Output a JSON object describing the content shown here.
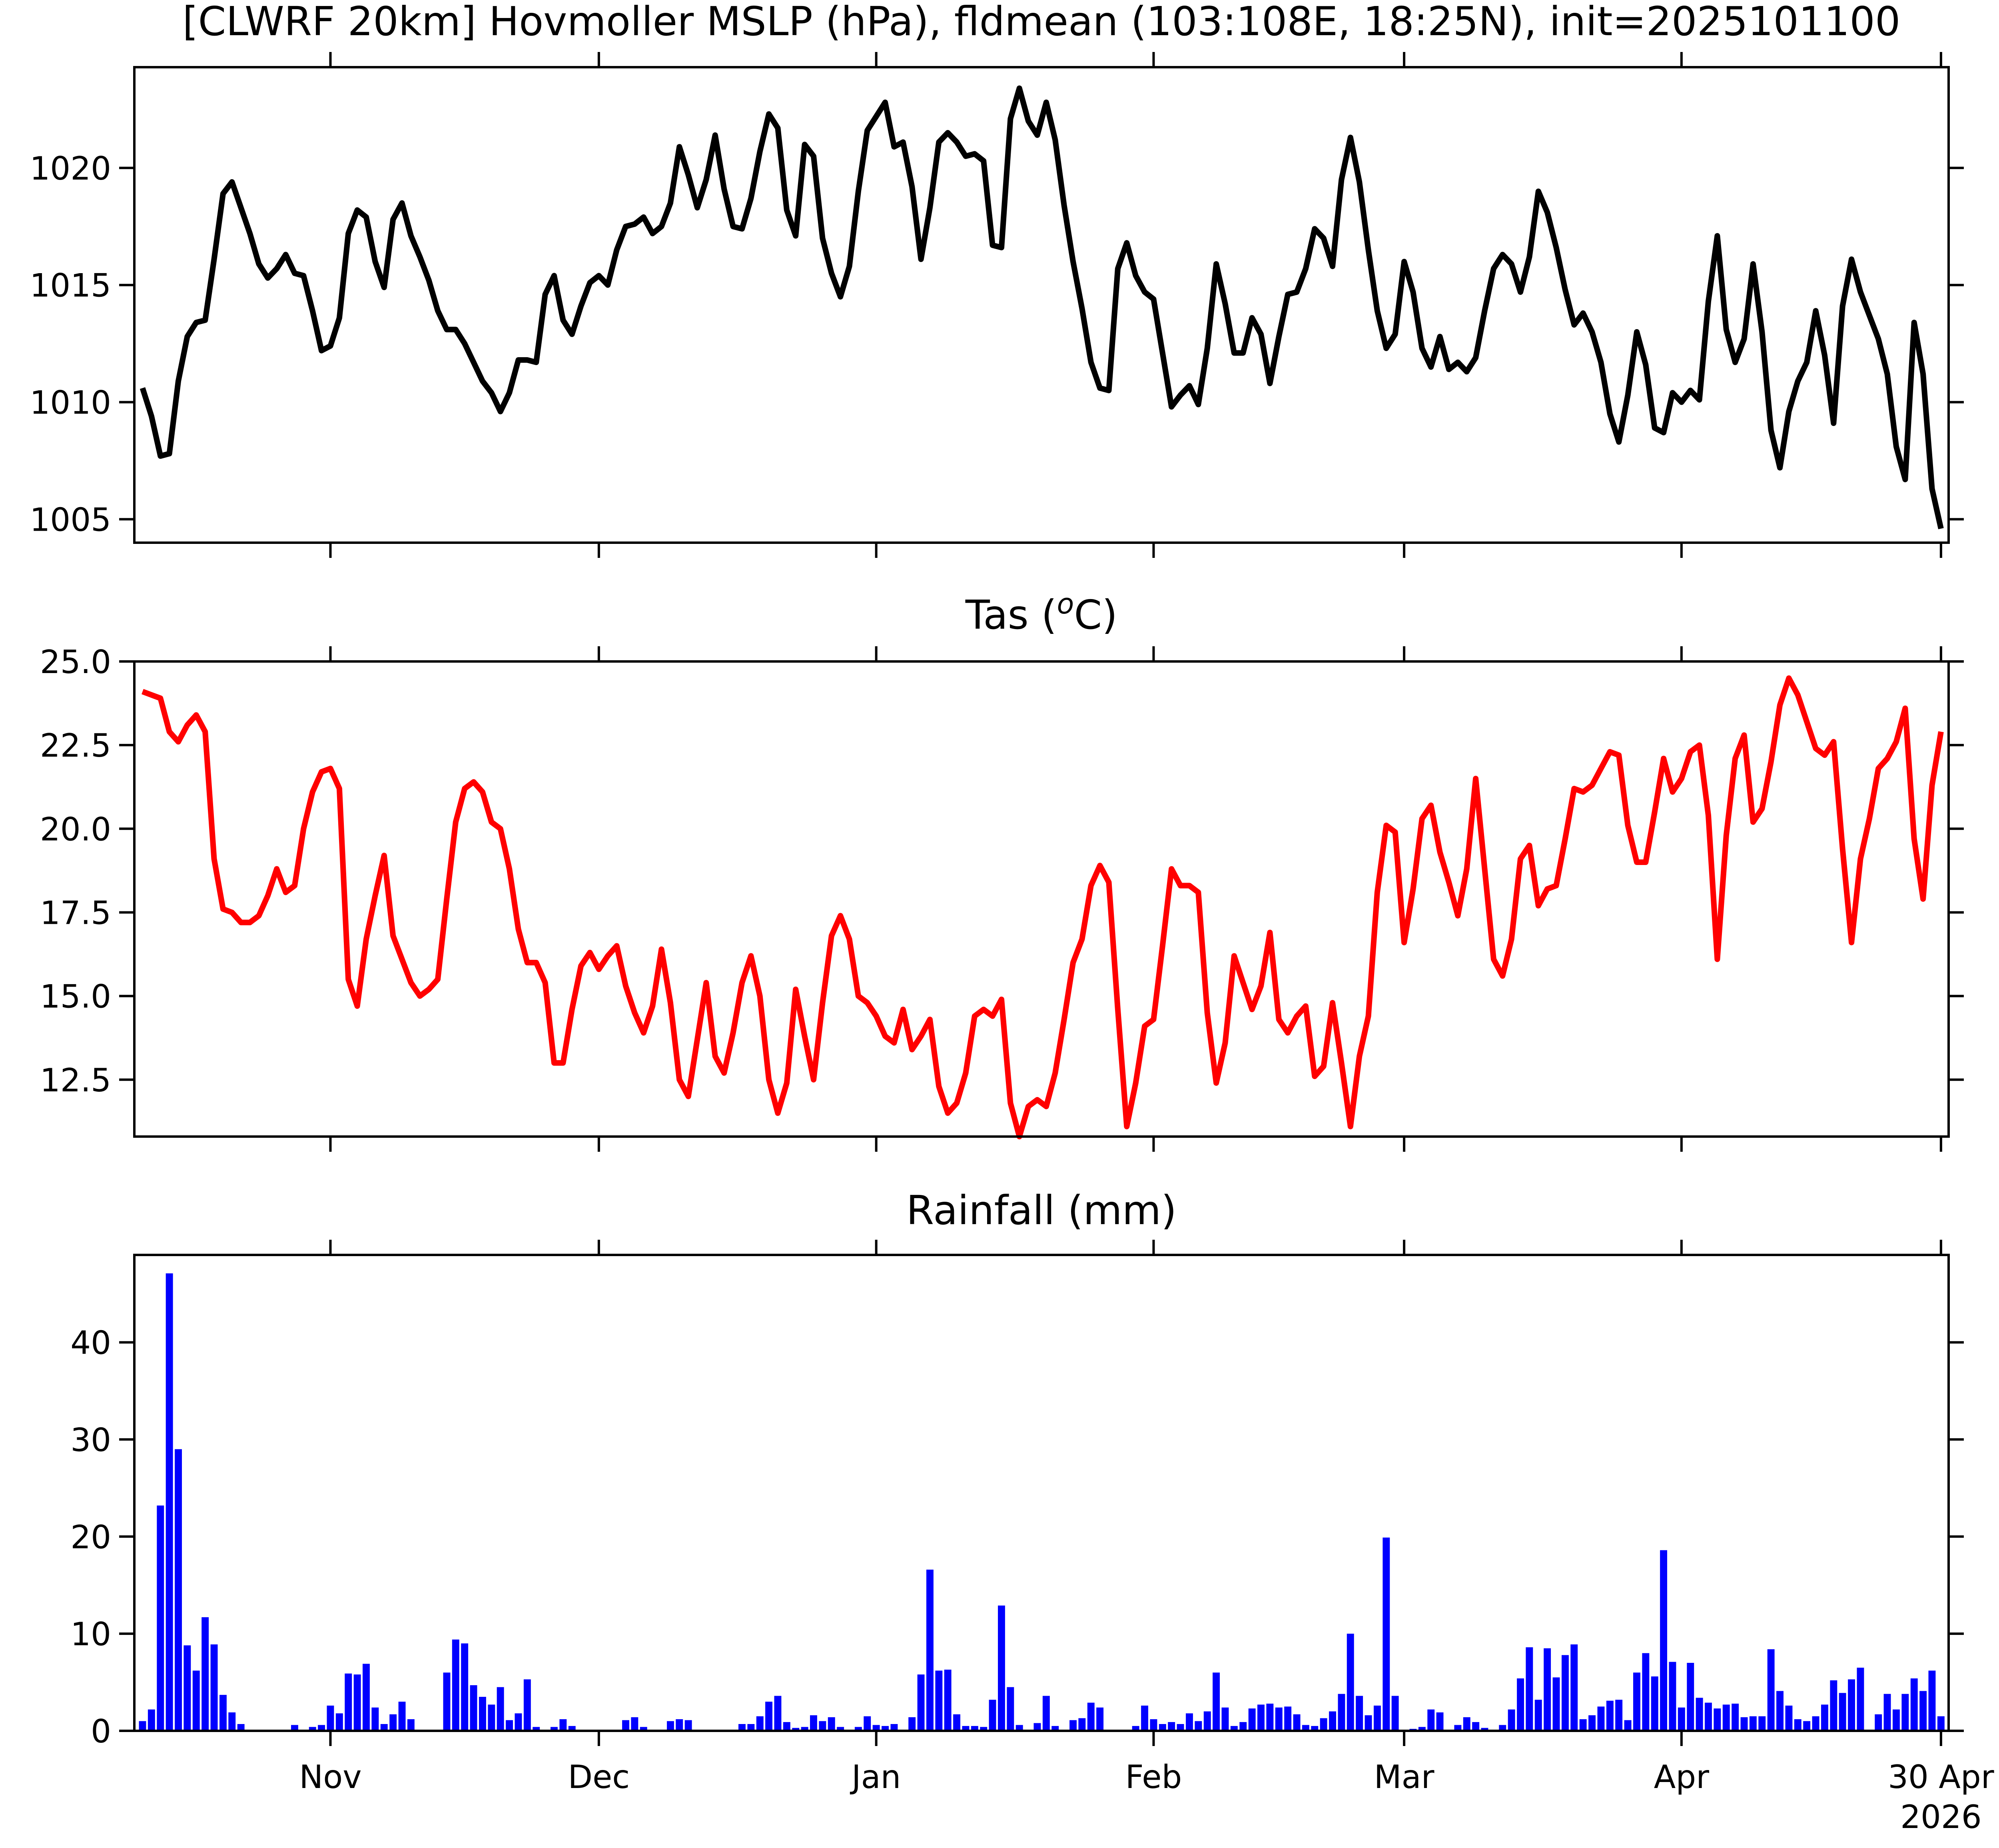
{
  "chart_data": [
    {
      "id": "mslp",
      "type": "line",
      "title": "[CLWRF 20km] Hovmoller MSLP (hPa), fldmean (103:108E, 18:25N), init=2025101100",
      "color": "#000000",
      "ylim": [
        1004,
        1024.3
      ],
      "yticks": [
        1005,
        1010,
        1015,
        1020
      ],
      "ytick_labels": [
        "1005",
        "1010",
        "1015",
        "1020"
      ],
      "show_xtick_labels": false,
      "series": [
        {
          "start_day": 0,
          "values": [
            1010.6,
            1009.4,
            1007.7,
            1007.8,
            1010.9,
            1012.8,
            1013.4,
            1013.5,
            1016.1,
            1018.9,
            1019.4,
            1018.3,
            1017.2,
            1015.9,
            1015.3,
            1015.7,
            1016.3,
            1015.5,
            1015.4,
            1013.9,
            1012.2,
            1012.4,
            1013.6,
            1017.2,
            1018.2,
            1017.9,
            1016.0,
            1014.9,
            1017.8,
            1018.5,
            1017.1,
            1016.2,
            1015.2,
            1013.9,
            1013.1,
            1013.1,
            1012.5,
            1011.7,
            1010.9,
            1010.4,
            1009.6,
            1010.4,
            1011.8,
            1011.8,
            1011.7,
            1014.6,
            1015.4,
            1013.5,
            1012.9,
            1014.1,
            1015.1,
            1015.4,
            1015.0,
            1016.5,
            1017.5,
            1017.6,
            1017.9,
            1017.2,
            1017.5,
            1018.5,
            1020.9,
            1019.7,
            1018.3,
            1019.5,
            1021.4,
            1019.1,
            1017.5,
            1017.4,
            1018.7,
            1020.7,
            1022.3,
            1021.7,
            1018.2,
            1017.1,
            1021.0,
            1020.5,
            1017.0,
            1015.5,
            1014.5,
            1015.8,
            1019.0,
            1021.6,
            1022.2,
            1022.8,
            1020.9,
            1021.1,
            1019.2,
            1016.1,
            1018.3,
            1021.1,
            1021.5,
            1021.1,
            1020.5,
            1020.6,
            1020.3,
            1016.7,
            1016.6,
            1022.1,
            1023.4,
            1022.0,
            1021.4,
            1022.8,
            1021.2,
            1018.4,
            1016.0,
            1014.0,
            1011.7,
            1010.6,
            1010.5,
            1015.7,
            1016.8,
            1015.4,
            1014.7,
            1014.4,
            1012.1,
            1009.8,
            1010.3,
            1010.7,
            1009.9,
            1012.3,
            1015.9,
            1014.2,
            1012.1,
            1012.1,
            1013.6,
            1012.9,
            1010.8,
            1012.8,
            1014.6,
            1014.7,
            1015.7,
            1017.4,
            1017.0,
            1015.8,
            1019.5,
            1021.3,
            1019.4,
            1016.5,
            1013.9,
            1012.3,
            1012.9,
            1016.0,
            1014.7,
            1012.3,
            1011.5,
            1012.8,
            1011.4,
            1011.7,
            1011.3,
            1011.9,
            1013.9,
            1015.7,
            1016.3,
            1015.9,
            1014.7,
            1016.2,
            1019.0,
            1018.1,
            1016.6,
            1014.8,
            1013.3,
            1013.8,
            1013.0,
            1011.7,
            1009.5,
            1008.3,
            1010.3,
            1013.0,
            1011.6,
            1008.9,
            1008.7,
            1010.4,
            1010.0,
            1010.5,
            1010.1,
            1014.3,
            1017.1,
            1013.1,
            1011.7,
            1012.7,
            1015.9,
            1013.0,
            1008.8,
            1007.2,
            1009.6,
            1010.9,
            1011.7,
            1013.9,
            1012.0,
            1009.1,
            1014.1,
            1016.1,
            1014.7,
            1013.7,
            1012.7,
            1011.2,
            1008.1,
            1006.7,
            1013.4,
            1011.2,
            1006.3,
            1004.6
          ]
        }
      ]
    },
    {
      "id": "tas",
      "type": "line",
      "title": "Tas (ᵒC)",
      "title_text": "Tas (",
      "title_sup": "o",
      "title_unit": "C)",
      "color": "#ff0000",
      "ylim": [
        10.8,
        25.0
      ],
      "yticks": [
        12.5,
        15.0,
        17.5,
        20.0,
        22.5,
        25.0
      ],
      "ytick_labels": [
        "12.5",
        "15.0",
        "17.5",
        "20.0",
        "22.5",
        "25.0"
      ],
      "show_xtick_labels": false,
      "series": [
        {
          "start_day": 0,
          "values": [
            24.1,
            24.0,
            23.9,
            22.9,
            22.6,
            23.1,
            23.4,
            22.9,
            19.1,
            17.6,
            17.5,
            17.2,
            17.2,
            17.4,
            18.0,
            18.8,
            18.1,
            18.3,
            20.0,
            21.1,
            21.7,
            21.8,
            21.2,
            15.5,
            14.7,
            16.7,
            18.0,
            19.2,
            16.8,
            16.1,
            15.4,
            15.0,
            15.2,
            15.5,
            17.9,
            20.2,
            21.2,
            21.4,
            21.1,
            20.2,
            20.0,
            18.8,
            17.0,
            16.0,
            16.0,
            15.4,
            13.0,
            13.0,
            14.6,
            15.9,
            16.3,
            15.8,
            16.2,
            16.5,
            15.3,
            14.5,
            13.9,
            14.7,
            16.4,
            14.8,
            12.5,
            12.0,
            13.7,
            15.4,
            13.2,
            12.7,
            13.9,
            15.4,
            16.2,
            15.0,
            12.5,
            11.5,
            12.4,
            15.2,
            13.8,
            12.5,
            14.8,
            16.8,
            17.4,
            16.7,
            15.0,
            14.8,
            14.4,
            13.8,
            13.6,
            14.6,
            13.4,
            13.8,
            14.3,
            12.3,
            11.5,
            11.8,
            12.7,
            14.4,
            14.6,
            14.4,
            14.9,
            11.8,
            10.8,
            11.7,
            11.9,
            11.7,
            12.7,
            14.3,
            16.0,
            16.7,
            18.3,
            18.9,
            18.4,
            14.6,
            11.1,
            12.4,
            14.1,
            14.3,
            16.5,
            18.8,
            18.3,
            18.3,
            18.1,
            14.5,
            12.4,
            13.6,
            16.2,
            15.4,
            14.6,
            15.3,
            16.9,
            14.3,
            13.9,
            14.4,
            14.7,
            12.6,
            12.9,
            14.8,
            13.0,
            11.1,
            13.2,
            14.4,
            18.1,
            20.1,
            19.9,
            16.6,
            18.2,
            20.3,
            20.7,
            19.3,
            18.4,
            17.4,
            18.8,
            21.5,
            18.8,
            16.1,
            15.6,
            16.7,
            19.1,
            19.5,
            17.7,
            18.2,
            18.3,
            19.7,
            21.2,
            21.1,
            21.3,
            21.8,
            22.3,
            22.2,
            20.1,
            19.0,
            19.0,
            20.5,
            22.1,
            21.1,
            21.5,
            22.3,
            22.5,
            20.4,
            16.1,
            19.8,
            22.1,
            22.8,
            20.2,
            20.6,
            22.0,
            23.7,
            24.5,
            24.0,
            23.2,
            22.4,
            22.2,
            22.6,
            19.4,
            16.6,
            19.1,
            20.3,
            21.8,
            22.1,
            22.6,
            23.6,
            19.7,
            17.9,
            21.3,
            22.9
          ]
        }
      ]
    },
    {
      "id": "rain",
      "type": "bar",
      "title": "Rainfall (mm)",
      "color": "#0000ff",
      "ylim": [
        0,
        49
      ],
      "yticks": [
        0,
        10,
        20,
        30,
        40
      ],
      "ytick_labels": [
        "0",
        "10",
        "20",
        "30",
        "40"
      ],
      "show_xtick_labels": true,
      "series": [
        {
          "start_day": 0,
          "values": [
            1.0,
            2.2,
            23.2,
            47.1,
            29.0,
            8.8,
            6.2,
            11.7,
            8.9,
            3.7,
            1.9,
            0.7,
            0,
            0,
            0,
            0,
            0,
            0.6,
            0,
            0.4,
            0.6,
            2.6,
            1.8,
            5.9,
            5.8,
            6.9,
            2.4,
            0.7,
            1.7,
            3.0,
            1.2,
            0,
            0,
            0,
            6.0,
            9.4,
            9.0,
            4.7,
            3.5,
            2.7,
            4.5,
            1.1,
            1.8,
            5.3,
            0.4,
            0,
            0.4,
            1.2,
            0.5,
            0,
            0.1,
            0,
            0,
            0,
            1.1,
            1.4,
            0.4,
            0,
            0,
            1.0,
            1.2,
            1.1,
            0,
            0,
            0,
            0,
            0,
            0.7,
            0.7,
            1.5,
            3.0,
            3.6,
            0.9,
            0.3,
            0.4,
            1.6,
            1.0,
            1.4,
            0.4,
            0,
            0.4,
            1.5,
            0.6,
            0.5,
            0.7,
            0,
            1.4,
            5.8,
            16.6,
            6.2,
            6.3,
            1.7,
            0.5,
            0.5,
            0.4,
            3.2,
            12.9,
            4.5,
            0.6,
            0,
            0.8,
            3.6,
            0.5,
            0,
            1.1,
            1.3,
            2.9,
            2.4,
            0,
            0,
            0,
            0.5,
            2.6,
            1.2,
            0.7,
            0.9,
            0.7,
            1.8,
            1.0,
            2.0,
            6.0,
            2.4,
            0.5,
            0.9,
            2.3,
            2.7,
            2.8,
            2.4,
            2.5,
            1.7,
            0.6,
            0.5,
            1.3,
            2.0,
            3.8,
            10.0,
            3.6,
            1.6,
            2.6,
            19.9,
            3.6,
            0.1,
            0.2,
            0.4,
            2.2,
            1.9,
            0,
            0.6,
            1.4,
            0.9,
            0.3,
            0,
            0.6,
            2.2,
            5.4,
            8.6,
            3.2,
            8.5,
            5.5,
            7.8,
            8.9,
            1.2,
            1.6,
            2.5,
            3.1,
            3.2,
            1.1,
            6.0,
            8.0,
            5.6,
            18.6,
            7.1,
            2.4,
            7.0,
            3.4,
            2.9,
            2.3,
            2.7,
            2.8,
            1.4,
            1.5,
            1.5,
            8.4,
            4.1,
            2.6,
            1.2,
            1.0,
            1.5,
            2.7,
            5.2,
            3.9,
            5.3,
            6.5,
            0,
            1.7,
            3.8,
            2.2,
            3.8,
            5.4,
            4.1,
            6.2,
            1.5
          ]
        }
      ]
    }
  ],
  "x_axis": {
    "start_date": "2025-10-11",
    "end_date": "2026-04-30",
    "ticks": [
      {
        "day": 21,
        "label": "Nov",
        "sublabel": ""
      },
      {
        "day": 51,
        "label": "Dec",
        "sublabel": ""
      },
      {
        "day": 82,
        "label": "Jan",
        "sublabel": ""
      },
      {
        "day": 113,
        "label": "Feb",
        "sublabel": ""
      },
      {
        "day": 141,
        "label": "Mar",
        "sublabel": ""
      },
      {
        "day": 172,
        "label": "Apr",
        "sublabel": ""
      },
      {
        "day": 201,
        "label": "30 Apr",
        "sublabel": "2026"
      }
    ]
  }
}
